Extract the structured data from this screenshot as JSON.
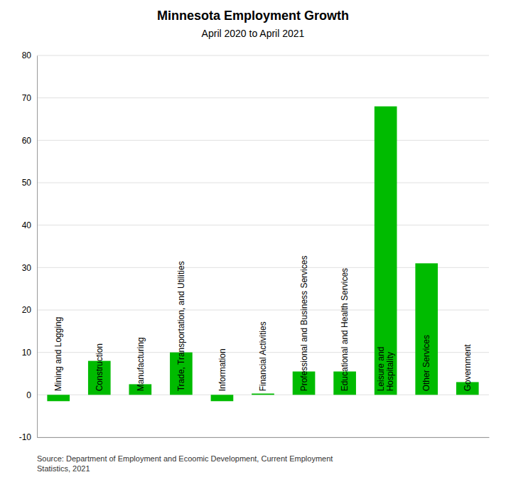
{
  "chart_data": {
    "type": "bar",
    "title": "Minnesota Employment Growth",
    "subtitle": "April 2020 to April 2021",
    "source": "Source: Department of Employment and Ecoomic Development, Current Employment\nStatistics, 2021",
    "categories": [
      "Mining and Logging",
      "Construction",
      "Manufacturing",
      "Trade, Transportation, and Utilities",
      "Information",
      "Financial Activities",
      "Professional and Business Services",
      "Educational and Health Services",
      "Leisure and\nHospitality",
      "Other Services",
      "Government"
    ],
    "values": [
      -1.5,
      8.0,
      2.5,
      10.0,
      -1.5,
      0.3,
      5.5,
      5.5,
      68.0,
      31.0,
      3.0
    ],
    "color": "#00bb00",
    "ylim": [
      -10,
      80
    ],
    "yticks": [
      -10,
      0,
      10,
      20,
      30,
      40,
      50,
      60,
      70,
      80
    ],
    "grid": true,
    "tick_labels": "y"
  }
}
